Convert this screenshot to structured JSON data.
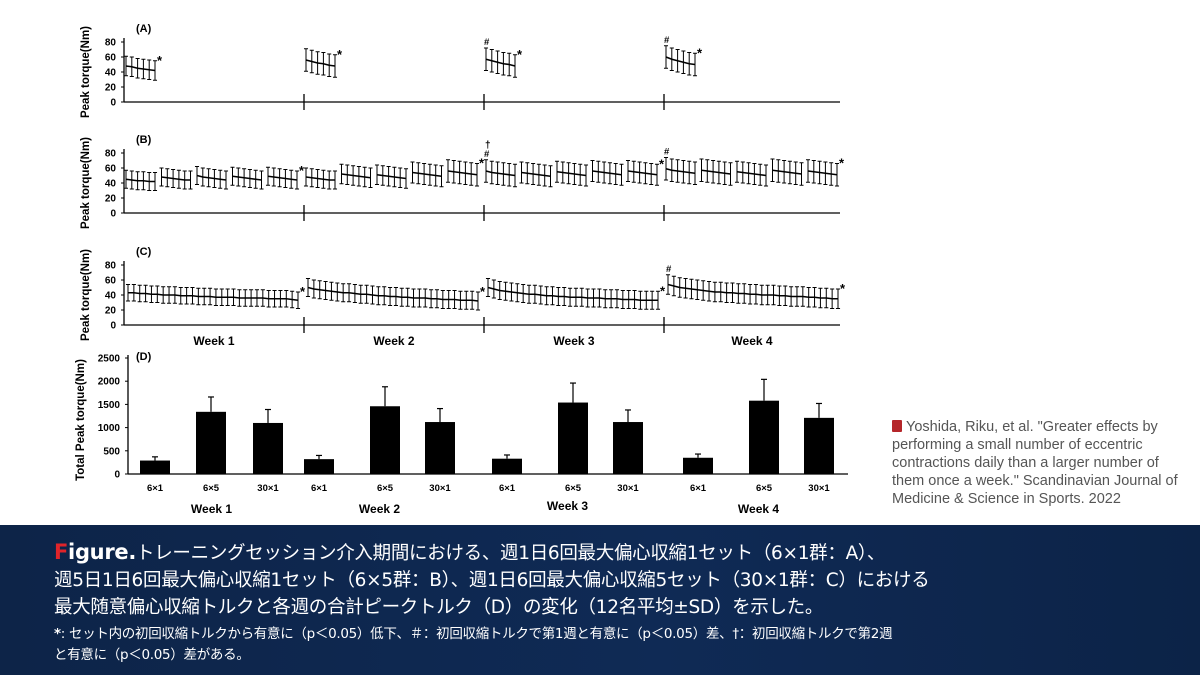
{
  "citation": {
    "icon": "book-icon",
    "text": "Yoshida, Riku, et al. \"Greater effects by performing a small number of eccentric contractions daily than a larger number of them once a week.\" Scandinavian Journal of Medicine & Science in Sports. 2022"
  },
  "caption": {
    "figure_first": "F",
    "figure_rest": "igure.",
    "line1": "トレーニングセッション介入期間における、週1日6回最大偏心収縮1セット（6×1群：A）、",
    "line2": "週5日1日6回最大偏心収縮1セット（6×5群：B）、週1日6回最大偏心収縮5セット（30×1群：C）における",
    "line3": "最大随意偏心収縮トルクと各週の合計ピークトルク（D）の変化（12名平均±SD）を示した。",
    "note_mark": "*",
    "note_line1": ": セット内の初回収縮トルクから有意に（p＜0.05）低下、＃：初回収縮トルクで第1週と有意に（p＜0.05）差、†：初回収縮トルクで第2週",
    "note_line2": "と有意に（p＜0.05）差がある。"
  },
  "chart_data": [
    {
      "type": "line",
      "panel": "(A)",
      "ylabel": "Peak torque(Nm)",
      "ylim": [
        0,
        80
      ],
      "yticks": [
        0,
        20,
        40,
        60,
        80
      ],
      "weeks": [
        {
          "label": "Week 1",
          "sets": [
            {
              "values": [
                48,
                47,
                45,
                44,
                43,
                42
              ],
              "sd": 13,
              "mark": "*"
            }
          ]
        },
        {
          "label": "Week 2",
          "sets": [
            {
              "values": [
                56,
                54,
                52,
                51,
                49,
                48
              ],
              "sd": 15,
              "mark": "*"
            }
          ]
        },
        {
          "label": "Week 3",
          "sets": [
            {
              "values": [
                57,
                55,
                53,
                51,
                50,
                48
              ],
              "sd": 15,
              "mark": "*",
              "first_mark": "#"
            }
          ]
        },
        {
          "label": "Week 4",
          "sets": [
            {
              "values": [
                60,
                57,
                55,
                53,
                51,
                50
              ],
              "sd": 15,
              "mark": "*",
              "first_mark": "#"
            }
          ]
        }
      ]
    },
    {
      "type": "line",
      "panel": "(B)",
      "ylabel": "Peak torque(Nm)",
      "ylim": [
        0,
        80
      ],
      "yticks": [
        0,
        20,
        40,
        60,
        80
      ],
      "weeks": [
        {
          "label": "Week 1",
          "sets": [
            {
              "values": [
                45,
                44,
                43,
                43,
                42,
                42
              ],
              "sd": 12
            },
            {
              "values": [
                48,
                47,
                46,
                45,
                44,
                44
              ],
              "sd": 12
            },
            {
              "values": [
                50,
                48,
                47,
                46,
                45,
                44
              ],
              "sd": 12
            },
            {
              "values": [
                49,
                48,
                47,
                46,
                45,
                44
              ],
              "sd": 12
            },
            {
              "values": [
                49,
                48,
                47,
                46,
                45,
                44
              ],
              "sd": 12,
              "mark": "*"
            }
          ]
        },
        {
          "label": "Week 2",
          "sets": [
            {
              "values": [
                48,
                47,
                46,
                45,
                44,
                44
              ],
              "sd": 12
            },
            {
              "values": [
                52,
                51,
                50,
                49,
                48,
                47
              ],
              "sd": 13
            },
            {
              "values": [
                51,
                50,
                49,
                48,
                47,
                46
              ],
              "sd": 13
            },
            {
              "values": [
                54,
                53,
                52,
                51,
                50,
                49
              ],
              "sd": 14
            },
            {
              "values": [
                56,
                55,
                54,
                53,
                52,
                51
              ],
              "sd": 15,
              "mark": "*"
            }
          ]
        },
        {
          "label": "Week 3",
          "sets": [
            {
              "values": [
                56,
                54,
                53,
                52,
                51,
                50
              ],
              "sd": 15,
              "first_mark": "#",
              "extra_mark": "†"
            },
            {
              "values": [
                54,
                53,
                52,
                51,
                50,
                49
              ],
              "sd": 14
            },
            {
              "values": [
                55,
                54,
                53,
                52,
                51,
                50
              ],
              "sd": 14
            },
            {
              "values": [
                56,
                55,
                54,
                53,
                52,
                51
              ],
              "sd": 14
            },
            {
              "values": [
                56,
                55,
                54,
                53,
                52,
                51
              ],
              "sd": 14,
              "mark": "*"
            }
          ]
        },
        {
          "label": "Week 4",
          "sets": [
            {
              "values": [
                59,
                57,
                56,
                55,
                54,
                53
              ],
              "sd": 15,
              "first_mark": "#"
            },
            {
              "values": [
                57,
                56,
                55,
                54,
                53,
                52
              ],
              "sd": 15
            },
            {
              "values": [
                55,
                54,
                53,
                52,
                51,
                50
              ],
              "sd": 14
            },
            {
              "values": [
                57,
                56,
                55,
                54,
                53,
                52
              ],
              "sd": 15
            },
            {
              "values": [
                56,
                55,
                54,
                53,
                52,
                51
              ],
              "sd": 15,
              "mark": "*"
            }
          ]
        }
      ]
    },
    {
      "type": "line",
      "panel": "(C)",
      "ylabel": "Peak torque(Nm)",
      "ylim": [
        0,
        80
      ],
      "yticks": [
        0,
        20,
        40,
        60,
        80
      ],
      "weeks": [
        {
          "label": "Week 1",
          "sets": [
            {
              "values": [
                43,
                43,
                42,
                42,
                41,
                41,
                40,
                40,
                40,
                39,
                39,
                39,
                38,
                38,
                38,
                37,
                37,
                37,
                37,
                36,
                36,
                36,
                36,
                36,
                35,
                35,
                35,
                35,
                34,
                33
              ],
              "sd": 11,
              "mark": "*"
            }
          ]
        },
        {
          "label": "Week 2",
          "sets": [
            {
              "values": [
                50,
                48,
                47,
                46,
                45,
                44,
                43,
                43,
                42,
                41,
                41,
                40,
                39,
                39,
                38,
                38,
                37,
                37,
                36,
                36,
                36,
                35,
                35,
                34,
                34,
                34,
                33,
                33,
                33,
                32
              ],
              "sd": 12,
              "mark": "*"
            }
          ]
        },
        {
          "label": "Week 3",
          "sets": [
            {
              "values": [
                50,
                48,
                46,
                45,
                44,
                43,
                42,
                41,
                41,
                40,
                39,
                39,
                38,
                38,
                37,
                37,
                37,
                36,
                36,
                36,
                35,
                35,
                35,
                34,
                34,
                34,
                33,
                33,
                33,
                33
              ],
              "sd": 12,
              "mark": "*"
            }
          ]
        },
        {
          "label": "Week 4",
          "sets": [
            {
              "values": [
                54,
                52,
                50,
                49,
                48,
                47,
                46,
                45,
                44,
                44,
                43,
                43,
                42,
                42,
                41,
                41,
                40,
                40,
                40,
                39,
                39,
                38,
                38,
                38,
                37,
                37,
                36,
                36,
                35,
                35
              ],
              "sd": 13,
              "mark": "*",
              "first_mark": "#"
            }
          ]
        }
      ],
      "xlabels": [
        "Week 1",
        "Week 2",
        "Week 3",
        "Week 4"
      ]
    },
    {
      "type": "bar",
      "panel": "(D)",
      "ylabel": "Total Peak torque(Nm)",
      "ylim": [
        0,
        2500
      ],
      "yticks": [
        0,
        500,
        1000,
        1500,
        2000,
        2500
      ],
      "weeks": [
        {
          "label": "Week 1",
          "groups": [
            {
              "name": "6×1",
              "value": 290,
              "sd": 80
            },
            {
              "name": "6×5",
              "value": 1340,
              "sd": 320
            },
            {
              "name": "30×1",
              "value": 1100,
              "sd": 290
            }
          ]
        },
        {
          "label": "Week 2",
          "groups": [
            {
              "name": "6×1",
              "value": 320,
              "sd": 80
            },
            {
              "name": "6×5",
              "value": 1460,
              "sd": 420
            },
            {
              "name": "30×1",
              "value": 1120,
              "sd": 290
            }
          ]
        },
        {
          "label": "Week 3",
          "groups": [
            {
              "name": "6×1",
              "value": 330,
              "sd": 80
            },
            {
              "name": "6×5",
              "value": 1540,
              "sd": 420
            },
            {
              "name": "30×1",
              "value": 1120,
              "sd": 260
            }
          ]
        },
        {
          "label": "Week 4",
          "groups": [
            {
              "name": "6×1",
              "value": 350,
              "sd": 80
            },
            {
              "name": "6×5",
              "value": 1580,
              "sd": 460
            },
            {
              "name": "30×1",
              "value": 1210,
              "sd": 310
            }
          ]
        }
      ]
    }
  ]
}
